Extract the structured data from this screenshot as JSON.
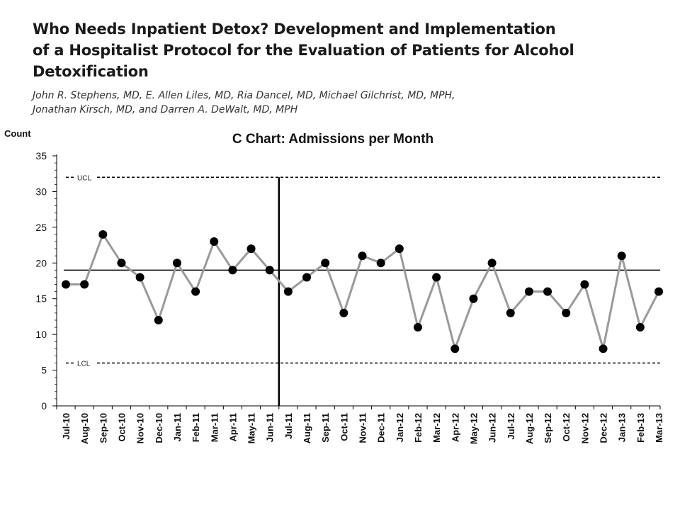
{
  "paper": {
    "title_lines": [
      "Who Needs Inpatient Detox? Development and Implementation",
      "of a Hospitalist Protocol for the Evaluation of Patients for Alcohol",
      "Detoxification"
    ],
    "author_lines": [
      "John R. Stephens, MD, E. Allen Liles, MD, Ria Dancel, MD, Michael Gilchrist, MD, MPH,",
      "Jonathan Kirsch, MD, and Darren A. DeWalt, MD, MPH"
    ]
  },
  "chart_data": {
    "type": "line",
    "title": "C Chart: Admissions per Month",
    "ylabel": "Count",
    "xlabel": "",
    "ylim": [
      0,
      35
    ],
    "yticks": [
      0,
      5,
      10,
      15,
      20,
      25,
      30,
      35
    ],
    "categories": [
      "Jul-10",
      "Aug-10",
      "Sep-10",
      "Oct-10",
      "Nov-10",
      "Dec-10",
      "Jan-11",
      "Feb-11",
      "Mar-11",
      "Apr-11",
      "May-11",
      "Jun-11",
      "Jul-11",
      "Aug-11",
      "Sep-11",
      "Oct-11",
      "Nov-11",
      "Dec-11",
      "Jan-12",
      "Feb-12",
      "Mar-12",
      "Apr-12",
      "May-12",
      "Jun-12",
      "Jul-12",
      "Aug-12",
      "Sep-12",
      "Oct-12",
      "Nov-12",
      "Dec-12",
      "Jan-13",
      "Feb-13",
      "Mar-13"
    ],
    "values": [
      17,
      17,
      24,
      20,
      18,
      12,
      20,
      16,
      23,
      19,
      22,
      19,
      16,
      18,
      20,
      13,
      21,
      20,
      22,
      11,
      18,
      8,
      15,
      20,
      13,
      16,
      16,
      13,
      17,
      8,
      21,
      11,
      16
    ],
    "center_line": 19,
    "ucl": {
      "label": "UCL",
      "value": 32
    },
    "lcl": {
      "label": "LCL",
      "value": 6
    },
    "intervention_between": [
      "Jun-11",
      "Jul-11"
    ],
    "grid": false,
    "colors": {
      "series_line": "#9a9a9a",
      "markers": "#000000",
      "center_line": "#000000",
      "control_limits": "#000000",
      "intervention": "#000000"
    }
  }
}
